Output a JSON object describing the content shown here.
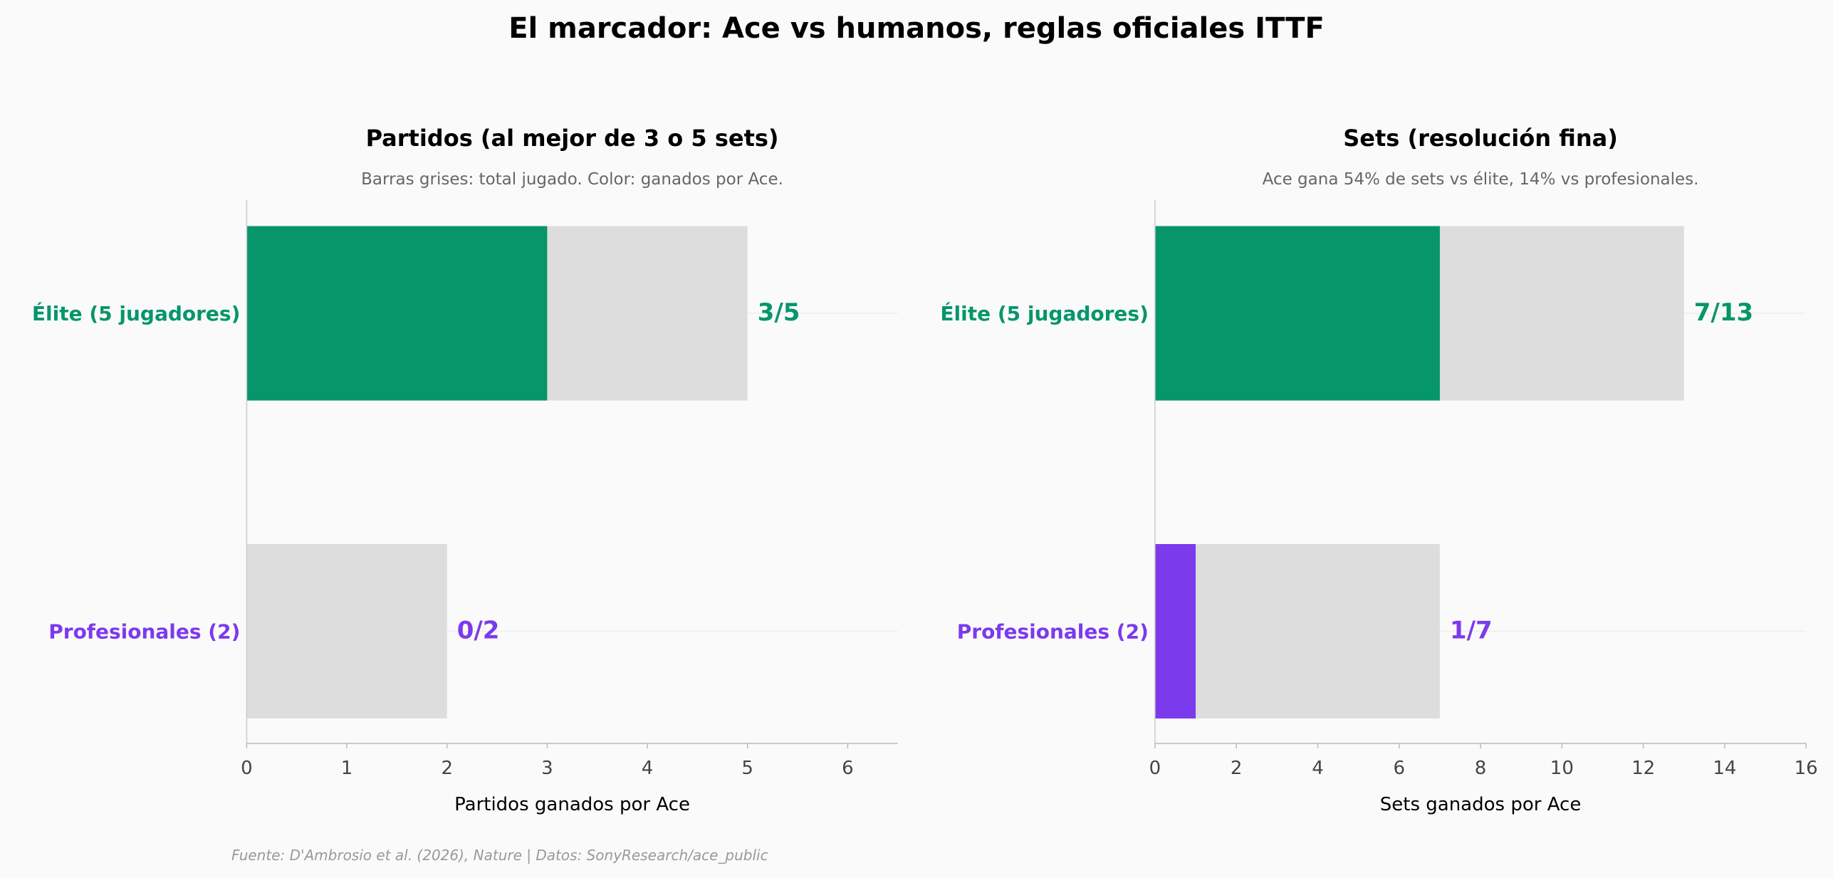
{
  "title": "El marcador: Ace vs humanos, reglas oficiales ITTF",
  "footer": "Fuente: D'Ambrosio et al. (2026), Nature | Datos: SonyResearch/ace_public",
  "colors": {
    "elite": "#06966a",
    "pro": "#7c3aed",
    "total": "#dddddd",
    "background": "#fafafa"
  },
  "chart_data": [
    {
      "type": "bar",
      "orientation": "horizontal",
      "title": "Partidos (al mejor de 3 o 5 sets)",
      "subtitle": "Barras grises: total jugado. Color: ganados por Ace.",
      "xlabel": "Partidos ganados por Ace",
      "xlim": [
        0,
        6.5
      ],
      "xticks": [
        "0",
        "1",
        "2",
        "3",
        "4",
        "5",
        "6"
      ],
      "categories": [
        "Élite (5 jugadores)",
        "Profesionales (2)"
      ],
      "series": [
        {
          "name": "total",
          "values": [
            5,
            2
          ]
        },
        {
          "name": "ganados",
          "values": [
            3,
            0
          ]
        }
      ],
      "data_labels": [
        "3/5",
        "0/2"
      ]
    },
    {
      "type": "bar",
      "orientation": "horizontal",
      "title": "Sets (resolución fina)",
      "subtitle": "Ace gana 54% de sets vs élite, 14% vs profesionales.",
      "xlabel": "Sets ganados por Ace",
      "xlim": [
        0,
        16
      ],
      "xticks": [
        "0",
        "2",
        "4",
        "6",
        "8",
        "10",
        "12",
        "14",
        "16"
      ],
      "categories": [
        "Élite (5 jugadores)",
        "Profesionales (2)"
      ],
      "series": [
        {
          "name": "total",
          "values": [
            13,
            7
          ]
        },
        {
          "name": "ganados",
          "values": [
            7,
            1
          ]
        }
      ],
      "data_labels": [
        "7/13",
        "1/7"
      ]
    }
  ]
}
